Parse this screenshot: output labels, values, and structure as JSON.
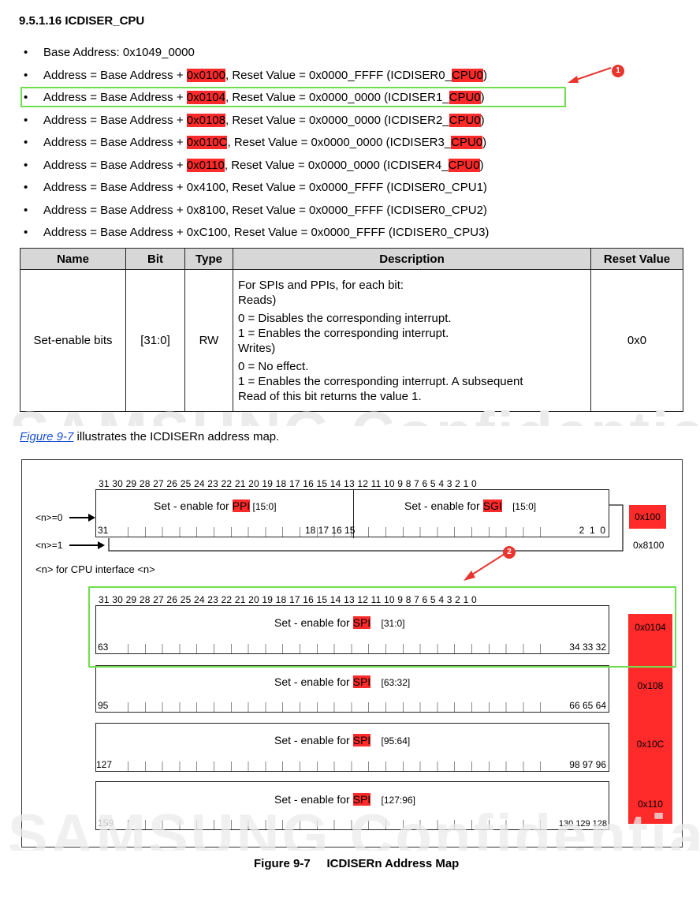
{
  "heading": "9.5.1.16 ICDISER_CPU",
  "bullets": [
    {
      "pre": "Base Address: 0x1049_0000",
      "hl1": "",
      "mid": "",
      "hl2": "",
      "post": ""
    },
    {
      "pre": "Address = Base Address + ",
      "hl1": "0x0100",
      "mid": ", Reset Value = 0x0000_FFFF (ICDISER0_",
      "hl2": "CPU0",
      "post": ")"
    },
    {
      "pre": "Address = Base Address + ",
      "hl1": "0x0104",
      "mid": ", Reset Value = 0x0000_0000 (ICDISER1_",
      "hl2": "CPU0",
      "post": ")"
    },
    {
      "pre": "Address = Base Address + ",
      "hl1": "0x0108",
      "mid": ", Reset Value = 0x0000_0000 (ICDISER2_",
      "hl2": "CPU0",
      "post": ")"
    },
    {
      "pre": "Address = Base Address + ",
      "hl1": "0x010C",
      "mid": ", Reset Value = 0x0000_0000 (ICDISER3_",
      "hl2": "CPU0",
      "post": ")"
    },
    {
      "pre": "Address = Base Address + ",
      "hl1": "0x0110",
      "mid": ", Reset Value = 0x0000_0000 (ICDISER4_",
      "hl2": "CPU0",
      "post": ")"
    },
    {
      "pre": "Address = Base Address + 0x4100, Reset Value = 0x0000_FFFF (ICDISER0_CPU1)",
      "hl1": "",
      "mid": "",
      "hl2": "",
      "post": ""
    },
    {
      "pre": "Address = Base Address + 0x8100, Reset Value = 0x0000_FFFF (ICDISER0_CPU2)",
      "hl1": "",
      "mid": "",
      "hl2": "",
      "post": ""
    },
    {
      "pre": "Address = Base Address + 0xC100, Reset Value = 0x0000_FFFF (ICDISER0_CPU3)",
      "hl1": "",
      "mid": "",
      "hl2": "",
      "post": ""
    }
  ],
  "bullet_char": "•",
  "callouts": [
    "1",
    "2"
  ],
  "table": {
    "headers": [
      "Name",
      "Bit",
      "Type",
      "Description",
      "Reset Value"
    ],
    "row": {
      "name": "Set-enable bits",
      "bit": "[31:0]",
      "type": "RW",
      "desc": [
        "For SPIs and PPIs, for each bit:",
        "Reads)",
        "0 = Disables the corresponding interrupt.",
        "1 = Enables the corresponding interrupt.",
        "Writes)",
        "0 = No effect.",
        "1 = Enables the corresponding interrupt. A subsequent",
        "Read of this bit returns the value 1."
      ],
      "reset": "0x0"
    }
  },
  "watermark": "SAMSUNG Confidential",
  "intro": {
    "link": "Figure 9-7",
    "rest": " illustrates the ICDISERn address map."
  },
  "diagram": {
    "bit_header": "31 30 29 28 27 26 25 24 23 22 21 20 19 18 17 16 15 14 13 12 11 10 9 8 7 6 5 4 3 2 1 0",
    "top": {
      "ppi_pre": "Set - enable for ",
      "ppi_hl": "PPI",
      "ppi_post": " [15:0]",
      "sgi_pre": "Set - enable for ",
      "sgi_hl": "SGI",
      "sgi_post": " [15:0]",
      "low_left": "31",
      "low_mid": "18 17 16 15",
      "low_right": "2  1  0",
      "addr_hl": "0x100",
      "addr_plain": "0x8100",
      "n0": "<n>=0",
      "n1": "<n>=1",
      "cpu_note": "<n> for CPU interface <n>"
    },
    "rows": [
      {
        "pre": "Set - enable for ",
        "hl": "SPI",
        "post": " [31:0]",
        "left": "63",
        "right": "34 33 32",
        "addr": "0x0104"
      },
      {
        "pre": "Set - enable for ",
        "hl": "SPI",
        "post": " [63:32]",
        "left": "95",
        "right": "66 65 64",
        "addr": "0x108"
      },
      {
        "pre": "Set - enable for ",
        "hl": "SPI",
        "post": " [95:64]",
        "left": "127",
        "right": "98 97 96",
        "addr": "0x10C"
      },
      {
        "pre": "Set - enable for ",
        "hl": "SPI",
        "post": " [127:96]",
        "left": "159",
        "right": "130 129 128",
        "addr": "0x110"
      }
    ]
  },
  "figure_caption": "Figure 9-7     ICDISERn Address Map",
  "colors": {
    "highlight": "#ff2a2a",
    "green_box": "#6ee04d",
    "link": "#1a4fd6"
  }
}
